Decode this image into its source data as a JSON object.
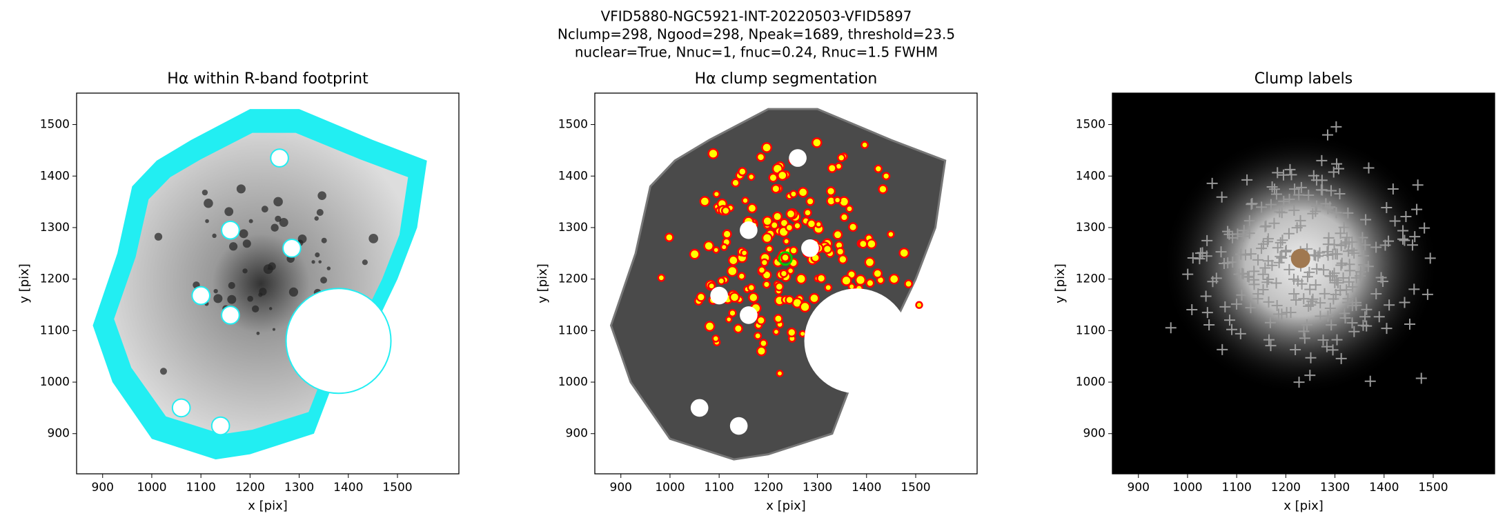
{
  "figure_title": [
    "VFID5880-NGC5921-INT-20220503-VFID5897",
    "Nclump=298, Ngood=298, Npeak=1689, threshold=23.5",
    "nuclear=True, Nnuc=1, fnuc=0.24, Rnuc=1.5 FWHM"
  ],
  "chart_data": [
    {
      "type": "image",
      "title": "Hα within R-band footprint",
      "xlabel": "x [pix]",
      "ylabel": "y [pix]",
      "xlim": [
        847,
        1625
      ],
      "ylim": [
        822,
        1561
      ],
      "xticks": [
        900,
        1000,
        1100,
        1200,
        1300,
        1400,
        1500
      ],
      "yticks": [
        900,
        1000,
        1100,
        1200,
        1300,
        1400,
        1500
      ]
    },
    {
      "type": "image",
      "title": "Hα clump segmentation",
      "xlabel": "x [pix]",
      "ylabel": "y [pix]",
      "xlim": [
        847,
        1625
      ],
      "ylim": [
        822,
        1561
      ],
      "xticks": [
        900,
        1000,
        1100,
        1200,
        1300,
        1400,
        1500
      ],
      "yticks": [
        900,
        1000,
        1100,
        1200,
        1300,
        1400,
        1500
      ]
    },
    {
      "type": "image",
      "title": "Clump labels",
      "xlabel": "x [pix]",
      "ylabel": "y [pix]",
      "xlim": [
        847,
        1625
      ],
      "ylim": [
        822,
        1561
      ],
      "xticks": [
        900,
        1000,
        1100,
        1200,
        1300,
        1400,
        1500
      ],
      "yticks": [
        900,
        1000,
        1100,
        1200,
        1300,
        1400,
        1500
      ]
    }
  ]
}
